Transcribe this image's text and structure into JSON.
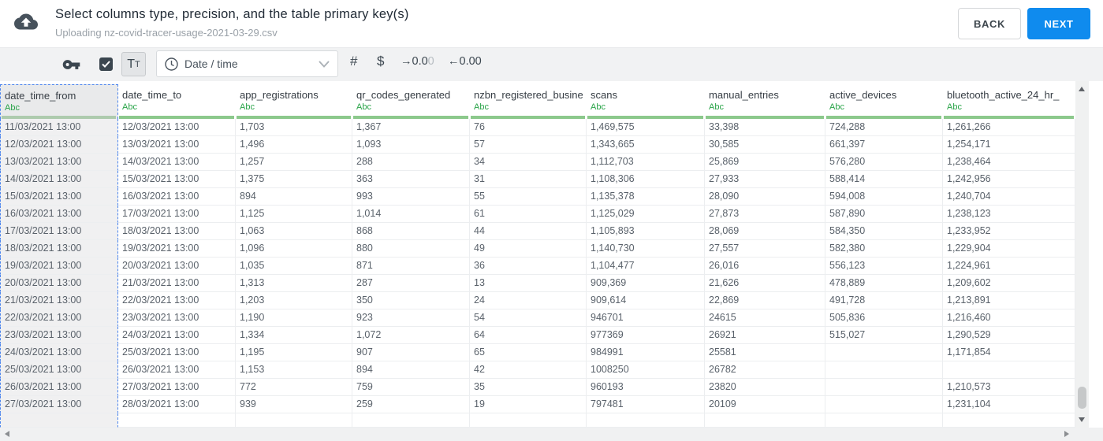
{
  "header": {
    "title": "Select columns type, precision, and the table primary key(s)",
    "subtitle": "Uploading nz-covid-tracer-usage-2021-03-29.csv",
    "back_label": "BACK",
    "next_label": "NEXT"
  },
  "toolbar": {
    "primary_key_checkbox_checked": true,
    "text_type": {
      "big": "T",
      "small": "T"
    },
    "type_select_value": "Date / time",
    "number_label": "#",
    "currency_label": "$",
    "decimal_right": {
      "arrow": "→",
      "digits": "0.0",
      "faded_digit": "0"
    },
    "decimal_left": {
      "arrow": "←",
      "digits": "0.00"
    }
  },
  "icons": {
    "upload_icon": "cloud-upload",
    "key_icon": "key",
    "check_icon": "checkmark",
    "clock_icon": "clock",
    "chevron_down_icon": "chevron-down",
    "scroll_up_icon": "triangle-up",
    "scroll_down_icon": "triangle-down",
    "scroll_left_icon": "triangle-left",
    "scroll_right_icon": "triangle-right"
  },
  "colors": {
    "primary_button_blue": "#0f8bee",
    "type_label_green": "#27a346",
    "header_valid_green": "#8cc98c",
    "selection_blue": "#4c85ee",
    "toolbar_icon_dark": "#3b464f"
  },
  "table": {
    "type_label": "Abc",
    "selected_column": "date_time_from",
    "trailing_empty_row": true,
    "columns": [
      "date_time_from",
      "date_time_to",
      "app_registrations",
      "qr_codes_generated",
      "nzbn_registered_busine",
      "scans",
      "manual_entries",
      "active_devices",
      "bluetooth_active_24_hr_"
    ],
    "rows": [
      [
        "11/03/2021 13:00",
        "12/03/2021 13:00",
        "1,703",
        "1,367",
        "76",
        "1,469,575",
        "33,398",
        "724,288",
        "1,261,266"
      ],
      [
        "12/03/2021 13:00",
        "13/03/2021 13:00",
        "1,496",
        "1,093",
        "57",
        "1,343,665",
        "30,585",
        "661,397",
        "1,254,171"
      ],
      [
        "13/03/2021 13:00",
        "14/03/2021 13:00",
        "1,257",
        "288",
        "34",
        "1,112,703",
        "25,869",
        "576,280",
        "1,238,464"
      ],
      [
        "14/03/2021 13:00",
        "15/03/2021 13:00",
        "1,375",
        "363",
        "31",
        "1,108,306",
        "27,933",
        "588,414",
        "1,242,956"
      ],
      [
        "15/03/2021 13:00",
        "16/03/2021 13:00",
        "894",
        "993",
        "55",
        "1,135,378",
        "28,090",
        "594,008",
        "1,240,704"
      ],
      [
        "16/03/2021 13:00",
        "17/03/2021 13:00",
        "1,125",
        "1,014",
        "61",
        "1,125,029",
        "27,873",
        "587,890",
        "1,238,123"
      ],
      [
        "17/03/2021 13:00",
        "18/03/2021 13:00",
        "1,063",
        "868",
        "44",
        "1,105,893",
        "28,069",
        "584,350",
        "1,233,952"
      ],
      [
        "18/03/2021 13:00",
        "19/03/2021 13:00",
        "1,096",
        "880",
        "49",
        "1,140,730",
        "27,557",
        "582,380",
        "1,229,904"
      ],
      [
        "19/03/2021 13:00",
        "20/03/2021 13:00",
        "1,035",
        "871",
        "36",
        "1,104,477",
        "26,016",
        "556,123",
        "1,224,961"
      ],
      [
        "20/03/2021 13:00",
        "21/03/2021 13:00",
        "1,313",
        "287",
        "13",
        "909,369",
        "21,626",
        "478,889",
        "1,209,602"
      ],
      [
        "21/03/2021 13:00",
        "22/03/2021 13:00",
        "1,203",
        "350",
        "24",
        "909,614",
        "22,869",
        "491,728",
        "1,213,891"
      ],
      [
        "22/03/2021 13:00",
        "23/03/2021 13:00",
        "1,190",
        "923",
        "54",
        "946701",
        "24615",
        "505,836",
        "1,216,460"
      ],
      [
        "23/03/2021 13:00",
        "24/03/2021 13:00",
        "1,334",
        "1,072",
        "64",
        "977369",
        "26921",
        "515,027",
        "1,290,529"
      ],
      [
        "24/03/2021 13:00",
        "25/03/2021 13:00",
        "1,195",
        "907",
        "65",
        "984991",
        "25581",
        "",
        "1,171,854"
      ],
      [
        "25/03/2021 13:00",
        "26/03/2021 13:00",
        "1,153",
        "894",
        "42",
        "1008250",
        "26782",
        "",
        ""
      ],
      [
        "26/03/2021 13:00",
        "27/03/2021 13:00",
        "772",
        "759",
        "35",
        "960193",
        "23820",
        "",
        "1,210,573"
      ],
      [
        "27/03/2021 13:00",
        "28/03/2021 13:00",
        "939",
        "259",
        "19",
        "797481",
        "20109",
        "",
        "1,231,104"
      ]
    ]
  }
}
